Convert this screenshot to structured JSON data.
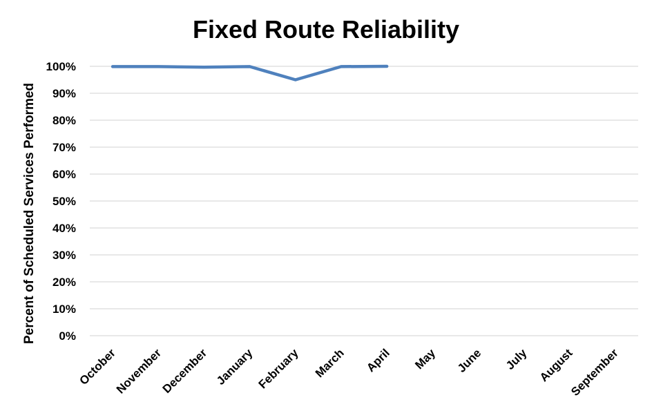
{
  "chart_data": {
    "type": "line",
    "title": "Fixed Route Reliability",
    "xlabel": "",
    "ylabel": "Percent of Scheduled Services Performed",
    "categories": [
      "October",
      "November",
      "December",
      "January",
      "February",
      "March",
      "April",
      "May",
      "June",
      "July",
      "August",
      "September"
    ],
    "series": [
      {
        "values": [
          99.9,
          99.9,
          99.7,
          99.9,
          95.0,
          99.9,
          100.0,
          null,
          null,
          null,
          null,
          null
        ],
        "color": "#4f81bd"
      }
    ],
    "ylim": [
      0,
      100
    ],
    "yticks": [
      0,
      10,
      20,
      30,
      40,
      50,
      60,
      70,
      80,
      90,
      100
    ],
    "ytick_labels": [
      "0%",
      "10%",
      "20%",
      "30%",
      "40%",
      "50%",
      "60%",
      "70%",
      "80%",
      "90%",
      "100%"
    ],
    "grid": true,
    "legend": "none"
  }
}
